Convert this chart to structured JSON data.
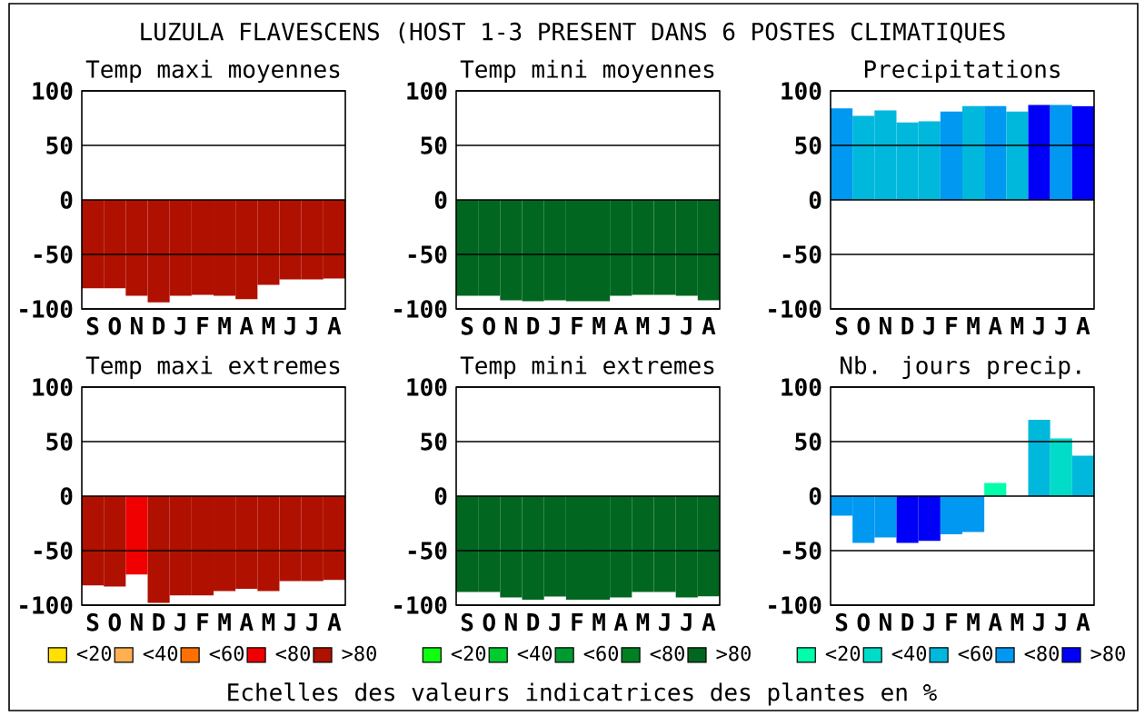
{
  "chart_data": [
    {
      "type": "bar",
      "title": "Temp maxi moyennes",
      "categories": [
        "S",
        "O",
        "N",
        "D",
        "J",
        "F",
        "M",
        "A",
        "M",
        "J",
        "J",
        "A"
      ],
      "values": [
        -81,
        -81,
        -88,
        -94,
        -88,
        -87,
        -88,
        -91,
        -78,
        -73,
        -73,
        -72
      ],
      "colors": [
        "#b01000",
        "#b01000",
        "#b01000",
        "#b01000",
        "#b01000",
        "#b01000",
        "#b01000",
        "#b01000",
        "#b01000",
        "#b01000",
        "#b01000",
        "#b01000"
      ],
      "ylim": [
        -100,
        100
      ],
      "yticks": [
        -100,
        -50,
        0,
        50,
        100
      ],
      "grid": "y",
      "annotations": [
        "LUZULA FLAVESCENS (HOST 1-3 PRESENT DANS   6 POSTES CLIMATIQUES",
        "Echelles des valeurs indicatrices des plantes en %"
      ]
    },
    {
      "type": "bar",
      "title": "Temp mini moyennes",
      "categories": [
        "S",
        "O",
        "N",
        "D",
        "J",
        "F",
        "M",
        "A",
        "M",
        "J",
        "J",
        "A"
      ],
      "values": [
        -88,
        -88,
        -92,
        -93,
        -92,
        -93,
        -93,
        -88,
        -87,
        -87,
        -88,
        -92
      ],
      "colors": [
        "#006620",
        "#006620",
        "#006620",
        "#006620",
        "#006620",
        "#006620",
        "#006620",
        "#006620",
        "#006620",
        "#006620",
        "#006620",
        "#006620"
      ],
      "ylim": [
        -100,
        100
      ],
      "yticks": [
        -100,
        -50,
        0,
        50,
        100
      ],
      "grid": "y"
    },
    {
      "type": "bar",
      "title": "Precipitations",
      "categories": [
        "S",
        "O",
        "N",
        "D",
        "J",
        "F",
        "M",
        "A",
        "M",
        "J",
        "J",
        "A"
      ],
      "values": [
        84,
        77,
        82,
        71,
        72,
        81,
        86,
        86,
        81,
        87,
        87,
        86
      ],
      "colors": [
        "#0098f0",
        "#00b8dc",
        "#00b8dc",
        "#00b8dc",
        "#00b8dc",
        "#0098f0",
        "#00b8dc",
        "#0098f0",
        "#00b8dc",
        "#0000f8",
        "#0098f0",
        "#0000f8"
      ],
      "ylim": [
        -100,
        100
      ],
      "yticks": [
        -100,
        -50,
        0,
        50,
        100
      ],
      "grid": "y"
    },
    {
      "type": "bar",
      "title": "Temp maxi extremes",
      "categories": [
        "S",
        "O",
        "N",
        "D",
        "J",
        "F",
        "M",
        "A",
        "M",
        "J",
        "J",
        "A"
      ],
      "ylim": [
        -100,
        100
      ],
      "yticks": [
        -100,
        -50,
        0,
        50,
        100
      ],
      "grid": "y",
      "legend": "bottom",
      "series": [
        {
          "name": "<20",
          "color": "#ffe000",
          "values": [
            null,
            null,
            null,
            null,
            null,
            null,
            null,
            null,
            null,
            null,
            null,
            null
          ]
        },
        {
          "name": "<40",
          "color": "#ffb050",
          "values": [
            null,
            null,
            null,
            null,
            null,
            null,
            null,
            null,
            null,
            null,
            null,
            null
          ]
        },
        {
          "name": "<60",
          "color": "#ff7000",
          "values": [
            null,
            null,
            null,
            null,
            null,
            null,
            null,
            null,
            null,
            null,
            null,
            null
          ]
        },
        {
          "name": "<80",
          "color": "#f00000",
          "values": [
            null,
            null,
            -72,
            null,
            null,
            null,
            null,
            null,
            null,
            null,
            null,
            null
          ]
        },
        {
          "name": ">80",
          "color": "#b01000",
          "values": [
            -82,
            -83,
            null,
            -98,
            -91,
            -91,
            -87,
            -85,
            -87,
            -78,
            -78,
            -77
          ]
        }
      ]
    },
    {
      "type": "bar",
      "title": "Temp mini extremes",
      "categories": [
        "S",
        "O",
        "N",
        "D",
        "J",
        "F",
        "M",
        "A",
        "M",
        "J",
        "J",
        "A"
      ],
      "ylim": [
        -100,
        100
      ],
      "yticks": [
        -100,
        -50,
        0,
        50,
        100
      ],
      "grid": "y",
      "legend": "bottom",
      "series": [
        {
          "name": "<20",
          "color": "#10ff10",
          "values": [
            null,
            null,
            null,
            null,
            null,
            null,
            null,
            null,
            null,
            null,
            null,
            null
          ]
        },
        {
          "name": "<40",
          "color": "#00cc30",
          "values": [
            null,
            null,
            null,
            null,
            null,
            null,
            null,
            null,
            null,
            null,
            null,
            null
          ]
        },
        {
          "name": "<60",
          "color": "#009a30",
          "values": [
            null,
            null,
            null,
            null,
            null,
            null,
            null,
            null,
            null,
            null,
            null,
            null
          ]
        },
        {
          "name": "<80",
          "color": "#008020",
          "values": [
            null,
            null,
            null,
            null,
            null,
            null,
            null,
            null,
            null,
            null,
            null,
            null
          ]
        },
        {
          "name": ">80",
          "color": "#006620",
          "values": [
            -88,
            -88,
            -93,
            -95,
            -92,
            -95,
            -95,
            -93,
            -88,
            -88,
            -93,
            -92
          ]
        }
      ]
    },
    {
      "type": "bar",
      "title": "Nb. jours precip.",
      "categories": [
        "S",
        "O",
        "N",
        "D",
        "J",
        "F",
        "M",
        "A",
        "M",
        "J",
        "J",
        "A"
      ],
      "ylim": [
        -100,
        100
      ],
      "yticks": [
        -100,
        -50,
        0,
        50,
        100
      ],
      "grid": "y",
      "legend": "bottom",
      "series": [
        {
          "name": "<20",
          "color": "#00ffaa",
          "values": [
            null,
            null,
            null,
            null,
            null,
            null,
            null,
            12,
            null,
            null,
            null,
            null
          ]
        },
        {
          "name": "<40",
          "color": "#00dcc8",
          "values": [
            null,
            null,
            null,
            null,
            null,
            null,
            null,
            null,
            null,
            null,
            53,
            null
          ]
        },
        {
          "name": "<60",
          "color": "#00b8dc",
          "values": [
            null,
            null,
            null,
            null,
            null,
            null,
            null,
            null,
            null,
            70,
            null,
            37
          ]
        },
        {
          "name": "<80",
          "color": "#0098f0",
          "values": [
            -18,
            -43,
            -38,
            null,
            null,
            -35,
            -33,
            null,
            null,
            null,
            null,
            null
          ]
        },
        {
          "name": ">80",
          "color": "#0000f8",
          "values": [
            null,
            null,
            null,
            -43,
            -41,
            null,
            null,
            null,
            null,
            null,
            null,
            null
          ]
        }
      ]
    }
  ]
}
